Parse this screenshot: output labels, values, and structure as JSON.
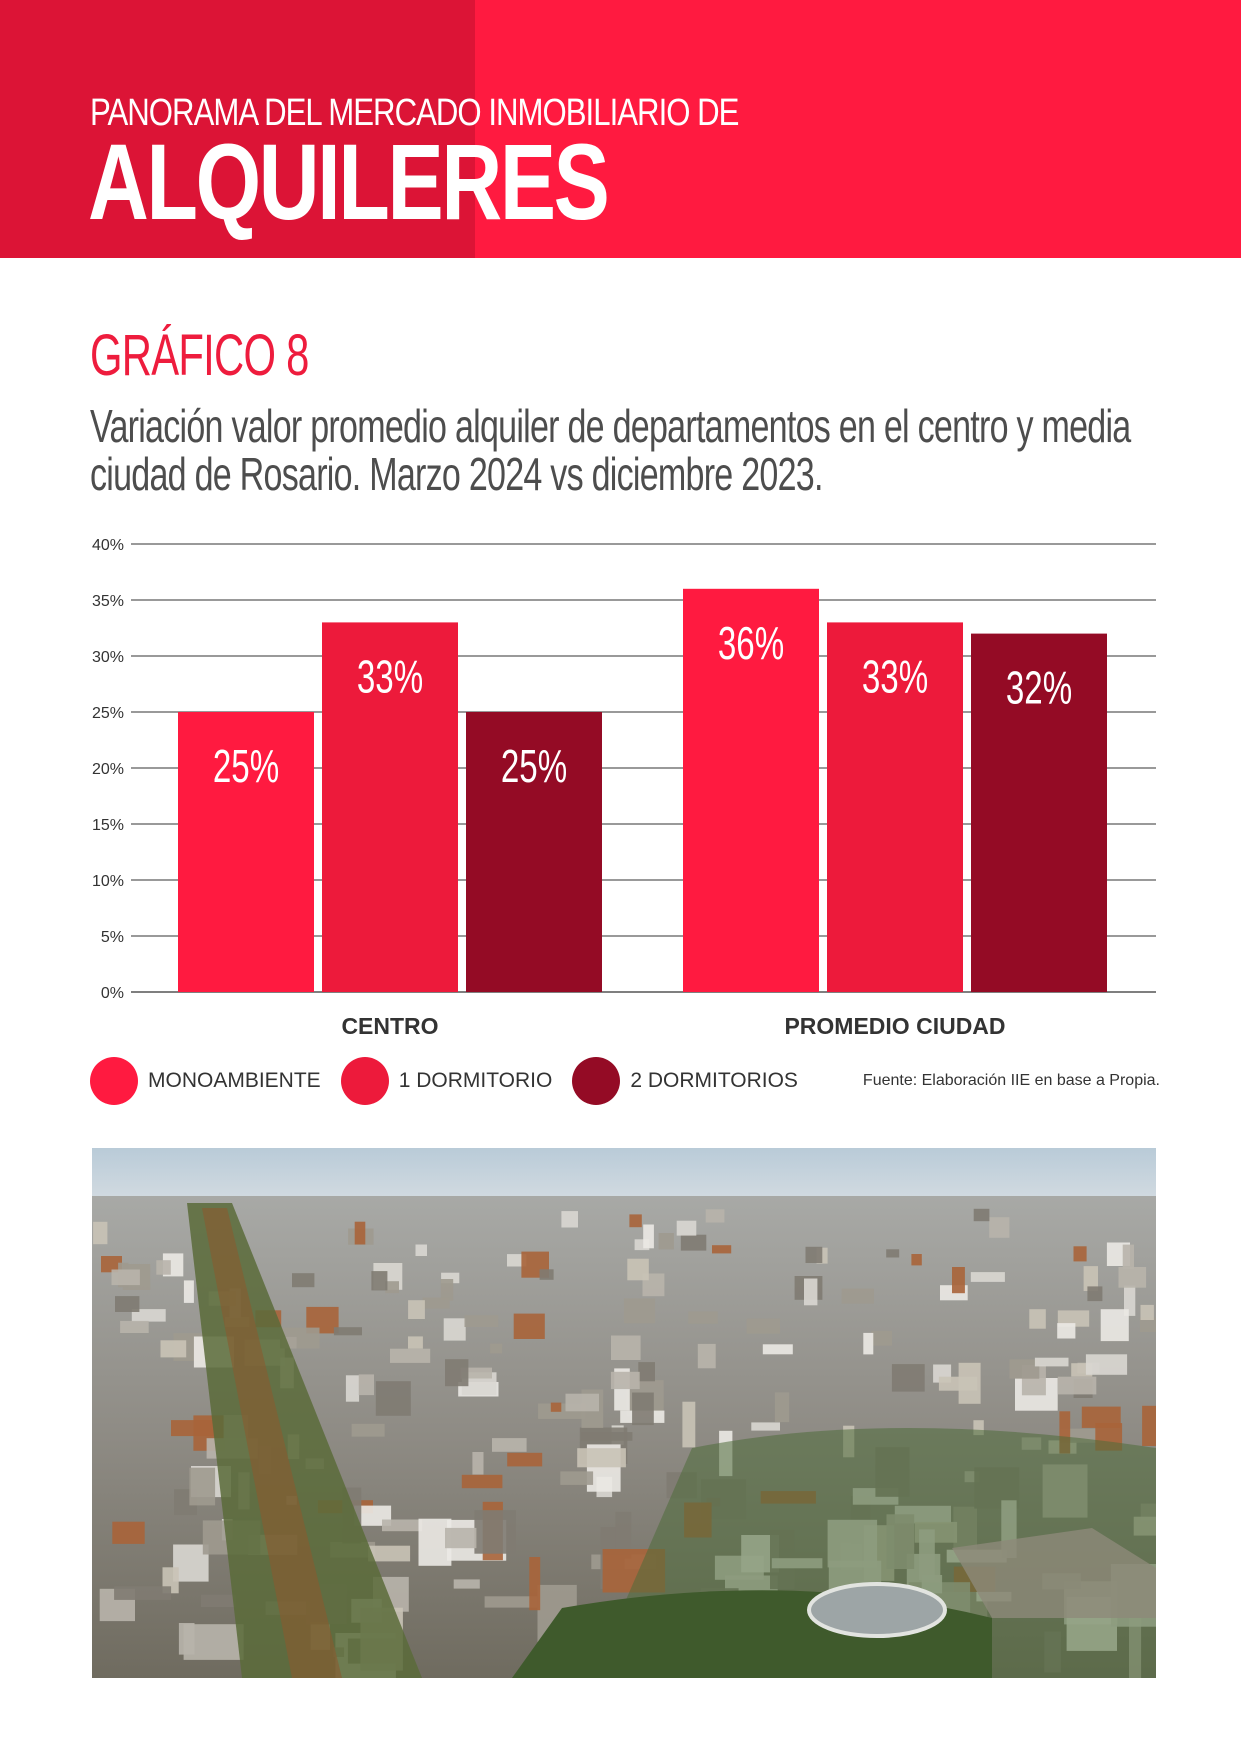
{
  "header": {
    "kicker": "PANORAMA DEL MERCADO INMOBILIARIO DE",
    "title": "ALQUILERES"
  },
  "figure": {
    "label": "GRÁFICO 8",
    "subtitle": "Variación valor promedio alquiler de departamentos en el centro y media ciudad de Rosario. Marzo 2024 vs diciembre 2023."
  },
  "chart_data": {
    "type": "bar",
    "title": "Variación valor promedio alquiler de departamentos en el centro y media ciudad de Rosario. Marzo 2024 vs diciembre 2023.",
    "categories": [
      "CENTRO",
      "PROMEDIO CIUDAD"
    ],
    "series": [
      {
        "name": "MONOAMBIENTE",
        "values": [
          25,
          36
        ],
        "labels": [
          "25%",
          "36%"
        ],
        "color": "#ff1a40"
      },
      {
        "name": "1 DORMITORIO",
        "values": [
          33,
          33
        ],
        "labels": [
          "33%",
          "33%"
        ],
        "color": "#ed1a3b"
      },
      {
        "name": "2 DORMITORIOS",
        "values": [
          25,
          32
        ],
        "labels": [
          "25%",
          "32%"
        ],
        "color": "#940b25"
      }
    ],
    "yticks": [
      "0%",
      "5%",
      "10%",
      "15%",
      "20%",
      "25%",
      "30%",
      "35%",
      "40%"
    ],
    "ylim": [
      0,
      40
    ],
    "grid": true,
    "legend": "bottom-left",
    "source": "Fuente: Elaboración IIE en base a Propia."
  },
  "photo": {
    "description_icon": "aerial-city-photo"
  }
}
